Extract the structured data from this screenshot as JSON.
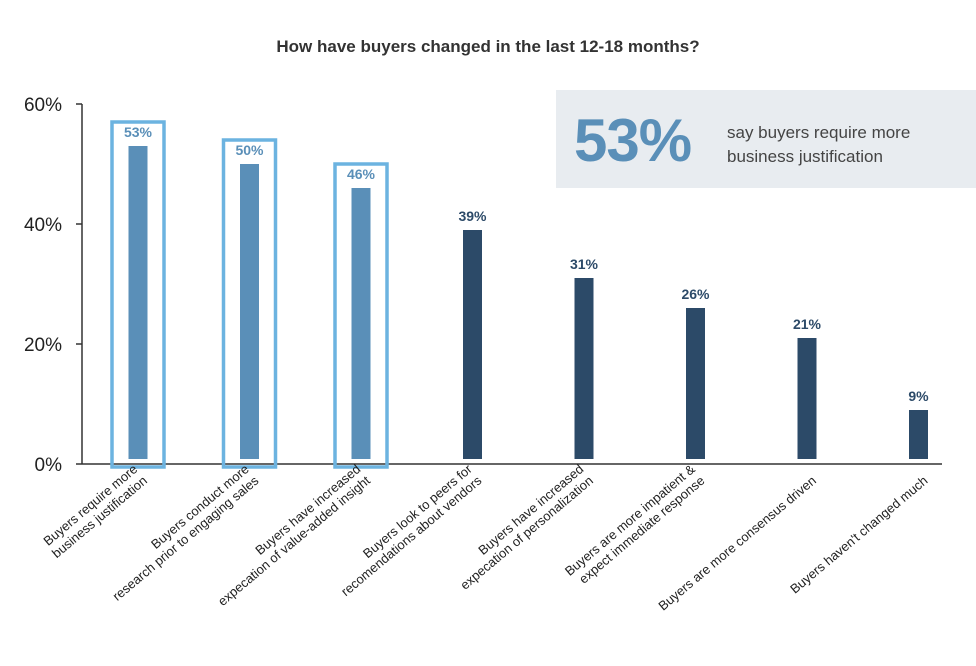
{
  "chart_data": {
    "type": "bar",
    "title": "How have buyers changed in the last 12-18 months?",
    "categories": [
      [
        "Buyers require more",
        "business justification"
      ],
      [
        "Buyers conduct more",
        "research prior to engaging sales"
      ],
      [
        "Buyers have increased",
        "expecation of value-added insight"
      ],
      [
        "Buyers look to peers for",
        "recomendations about vendors"
      ],
      [
        "Buyers have increased",
        "expecation of personalization"
      ],
      [
        "Buyers are more impatient &",
        "expect immediate response"
      ],
      [
        "Buyers are more consensus driven"
      ],
      [
        "Buyers haven't changed much"
      ]
    ],
    "values": [
      53,
      50,
      46,
      39,
      31,
      26,
      21,
      9
    ],
    "data_labels": [
      "53%",
      "50%",
      "46%",
      "39%",
      "31%",
      "26%",
      "21%",
      "9%"
    ],
    "highlighted": [
      true,
      true,
      true,
      false,
      false,
      false,
      false,
      false
    ],
    "ylim": [
      0,
      60
    ],
    "yticks": [
      0,
      20,
      40,
      60
    ],
    "ytick_labels": [
      "0%",
      "20%",
      "40%",
      "60%"
    ],
    "grid": false,
    "colors": {
      "highlight_bar": "#5a8fb8",
      "highlight_label": "#5a8fb8",
      "highlight_frame": "#6cb3e0",
      "normal_bar": "#2c4a68",
      "normal_label": "#2c4a68",
      "axis": "#333333",
      "callout_bg": "#e8ecf0"
    }
  },
  "callout": {
    "big_value": "53%",
    "text_line1": "say buyers require more",
    "text_line2": "business justification"
  }
}
